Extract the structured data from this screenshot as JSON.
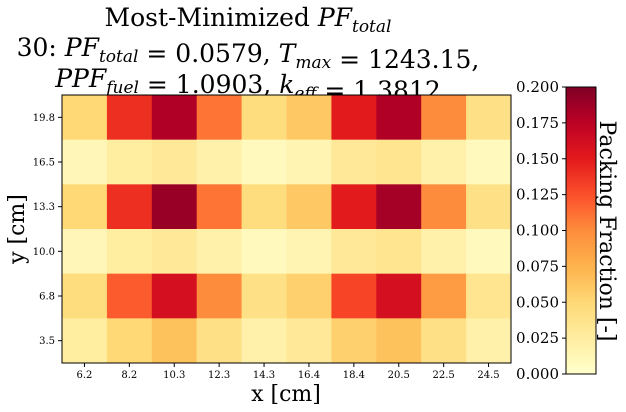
{
  "chart_data": {
    "type": "heatmap",
    "title_parts": [
      [
        {
          "t": "Most-Minimized "
        },
        {
          "t": "PF",
          "i": true
        },
        {
          "t": "total",
          "i": true,
          "sub": true
        }
      ],
      [
        {
          "t": "30: "
        },
        {
          "t": "PF",
          "i": true
        },
        {
          "t": "total",
          "i": true,
          "sub": true
        },
        {
          "t": " = 0.0579, "
        },
        {
          "t": "T",
          "i": true
        },
        {
          "t": "max",
          "i": true,
          "sub": true
        },
        {
          "t": " = 1243.15,"
        }
      ],
      [
        {
          "t": "PPF",
          "i": true
        },
        {
          "t": "fuel",
          "i": true,
          "sub": true
        },
        {
          "t": " = 1.0903, "
        },
        {
          "t": "k",
          "i": true
        },
        {
          "t": "eff",
          "i": true,
          "sub": true
        },
        {
          "t": " = 1.3812"
        }
      ]
    ],
    "xlabel": "x [cm]",
    "ylabel": "y [cm]",
    "colorbar_label": "Packing Fraction [-]",
    "colormap": "YlOrRd",
    "clim": [
      0.0,
      0.2
    ],
    "colorbar_ticks": [
      "0.000",
      "0.025",
      "0.050",
      "0.075",
      "0.100",
      "0.125",
      "0.150",
      "0.175",
      "0.200"
    ],
    "x_ticks": [
      "6.2",
      "8.2",
      "10.3",
      "12.3",
      "14.3",
      "16.4",
      "18.4",
      "20.5",
      "22.5",
      "24.5"
    ],
    "y_ticks": [
      "19.8",
      "16.5",
      "13.3",
      "10.0",
      "6.8",
      "3.5"
    ],
    "values": [
      [
        0.05,
        0.14,
        0.18,
        0.11,
        0.045,
        0.06,
        0.15,
        0.18,
        0.1,
        0.04
      ],
      [
        0.012,
        0.025,
        0.03,
        0.02,
        0.008,
        0.015,
        0.03,
        0.035,
        0.02,
        0.008
      ],
      [
        0.05,
        0.14,
        0.19,
        0.11,
        0.045,
        0.06,
        0.15,
        0.185,
        0.1,
        0.04
      ],
      [
        0.012,
        0.025,
        0.03,
        0.02,
        0.008,
        0.015,
        0.03,
        0.035,
        0.02,
        0.008
      ],
      [
        0.045,
        0.12,
        0.16,
        0.1,
        0.04,
        0.055,
        0.13,
        0.16,
        0.09,
        0.035
      ],
      [
        0.025,
        0.05,
        0.065,
        0.04,
        0.02,
        0.03,
        0.055,
        0.065,
        0.04,
        0.02
      ]
    ]
  }
}
